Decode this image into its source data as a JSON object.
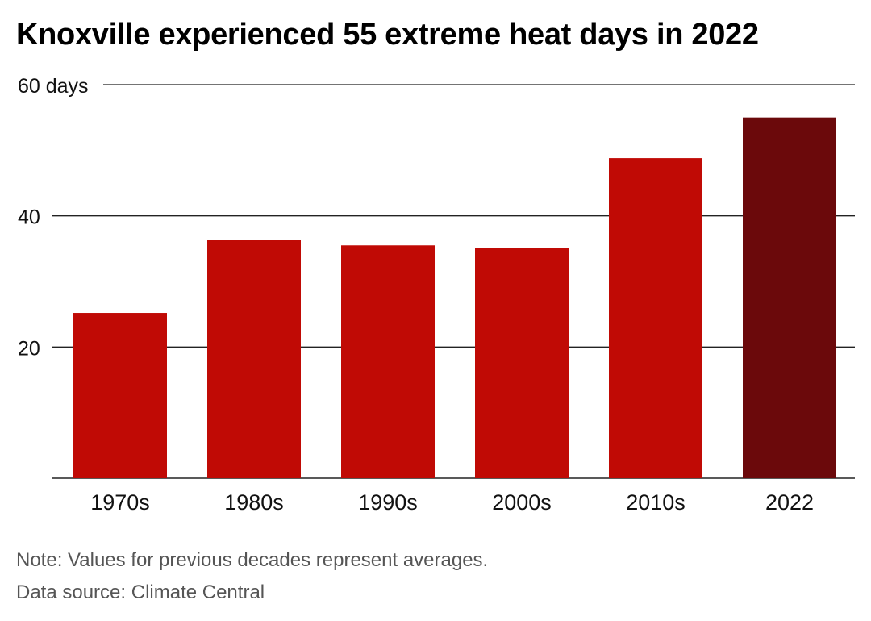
{
  "title": "Knoxville experienced 55 extreme heat days in 2022",
  "note": "Note: Values for previous decades represent averages.",
  "source": "Data source: Climate Central",
  "colors": {
    "bar": "#c00a05",
    "highlight": "#6b090b",
    "grid": "#222222"
  },
  "chart_data": {
    "type": "bar",
    "title": "Knoxville experienced 55 extreme heat days in 2022",
    "categories": [
      "1970s",
      "1980s",
      "1990s",
      "2000s",
      "2010s",
      "2022"
    ],
    "values": [
      25.2,
      36.3,
      35.5,
      35.1,
      48.8,
      55
    ],
    "highlight_index": 5,
    "ylim": [
      0,
      60
    ],
    "yticks": [
      20,
      40,
      60
    ],
    "ytick_labels": [
      "20",
      "40",
      "60 days"
    ],
    "xlabel": "",
    "ylabel": "",
    "grid": true
  }
}
